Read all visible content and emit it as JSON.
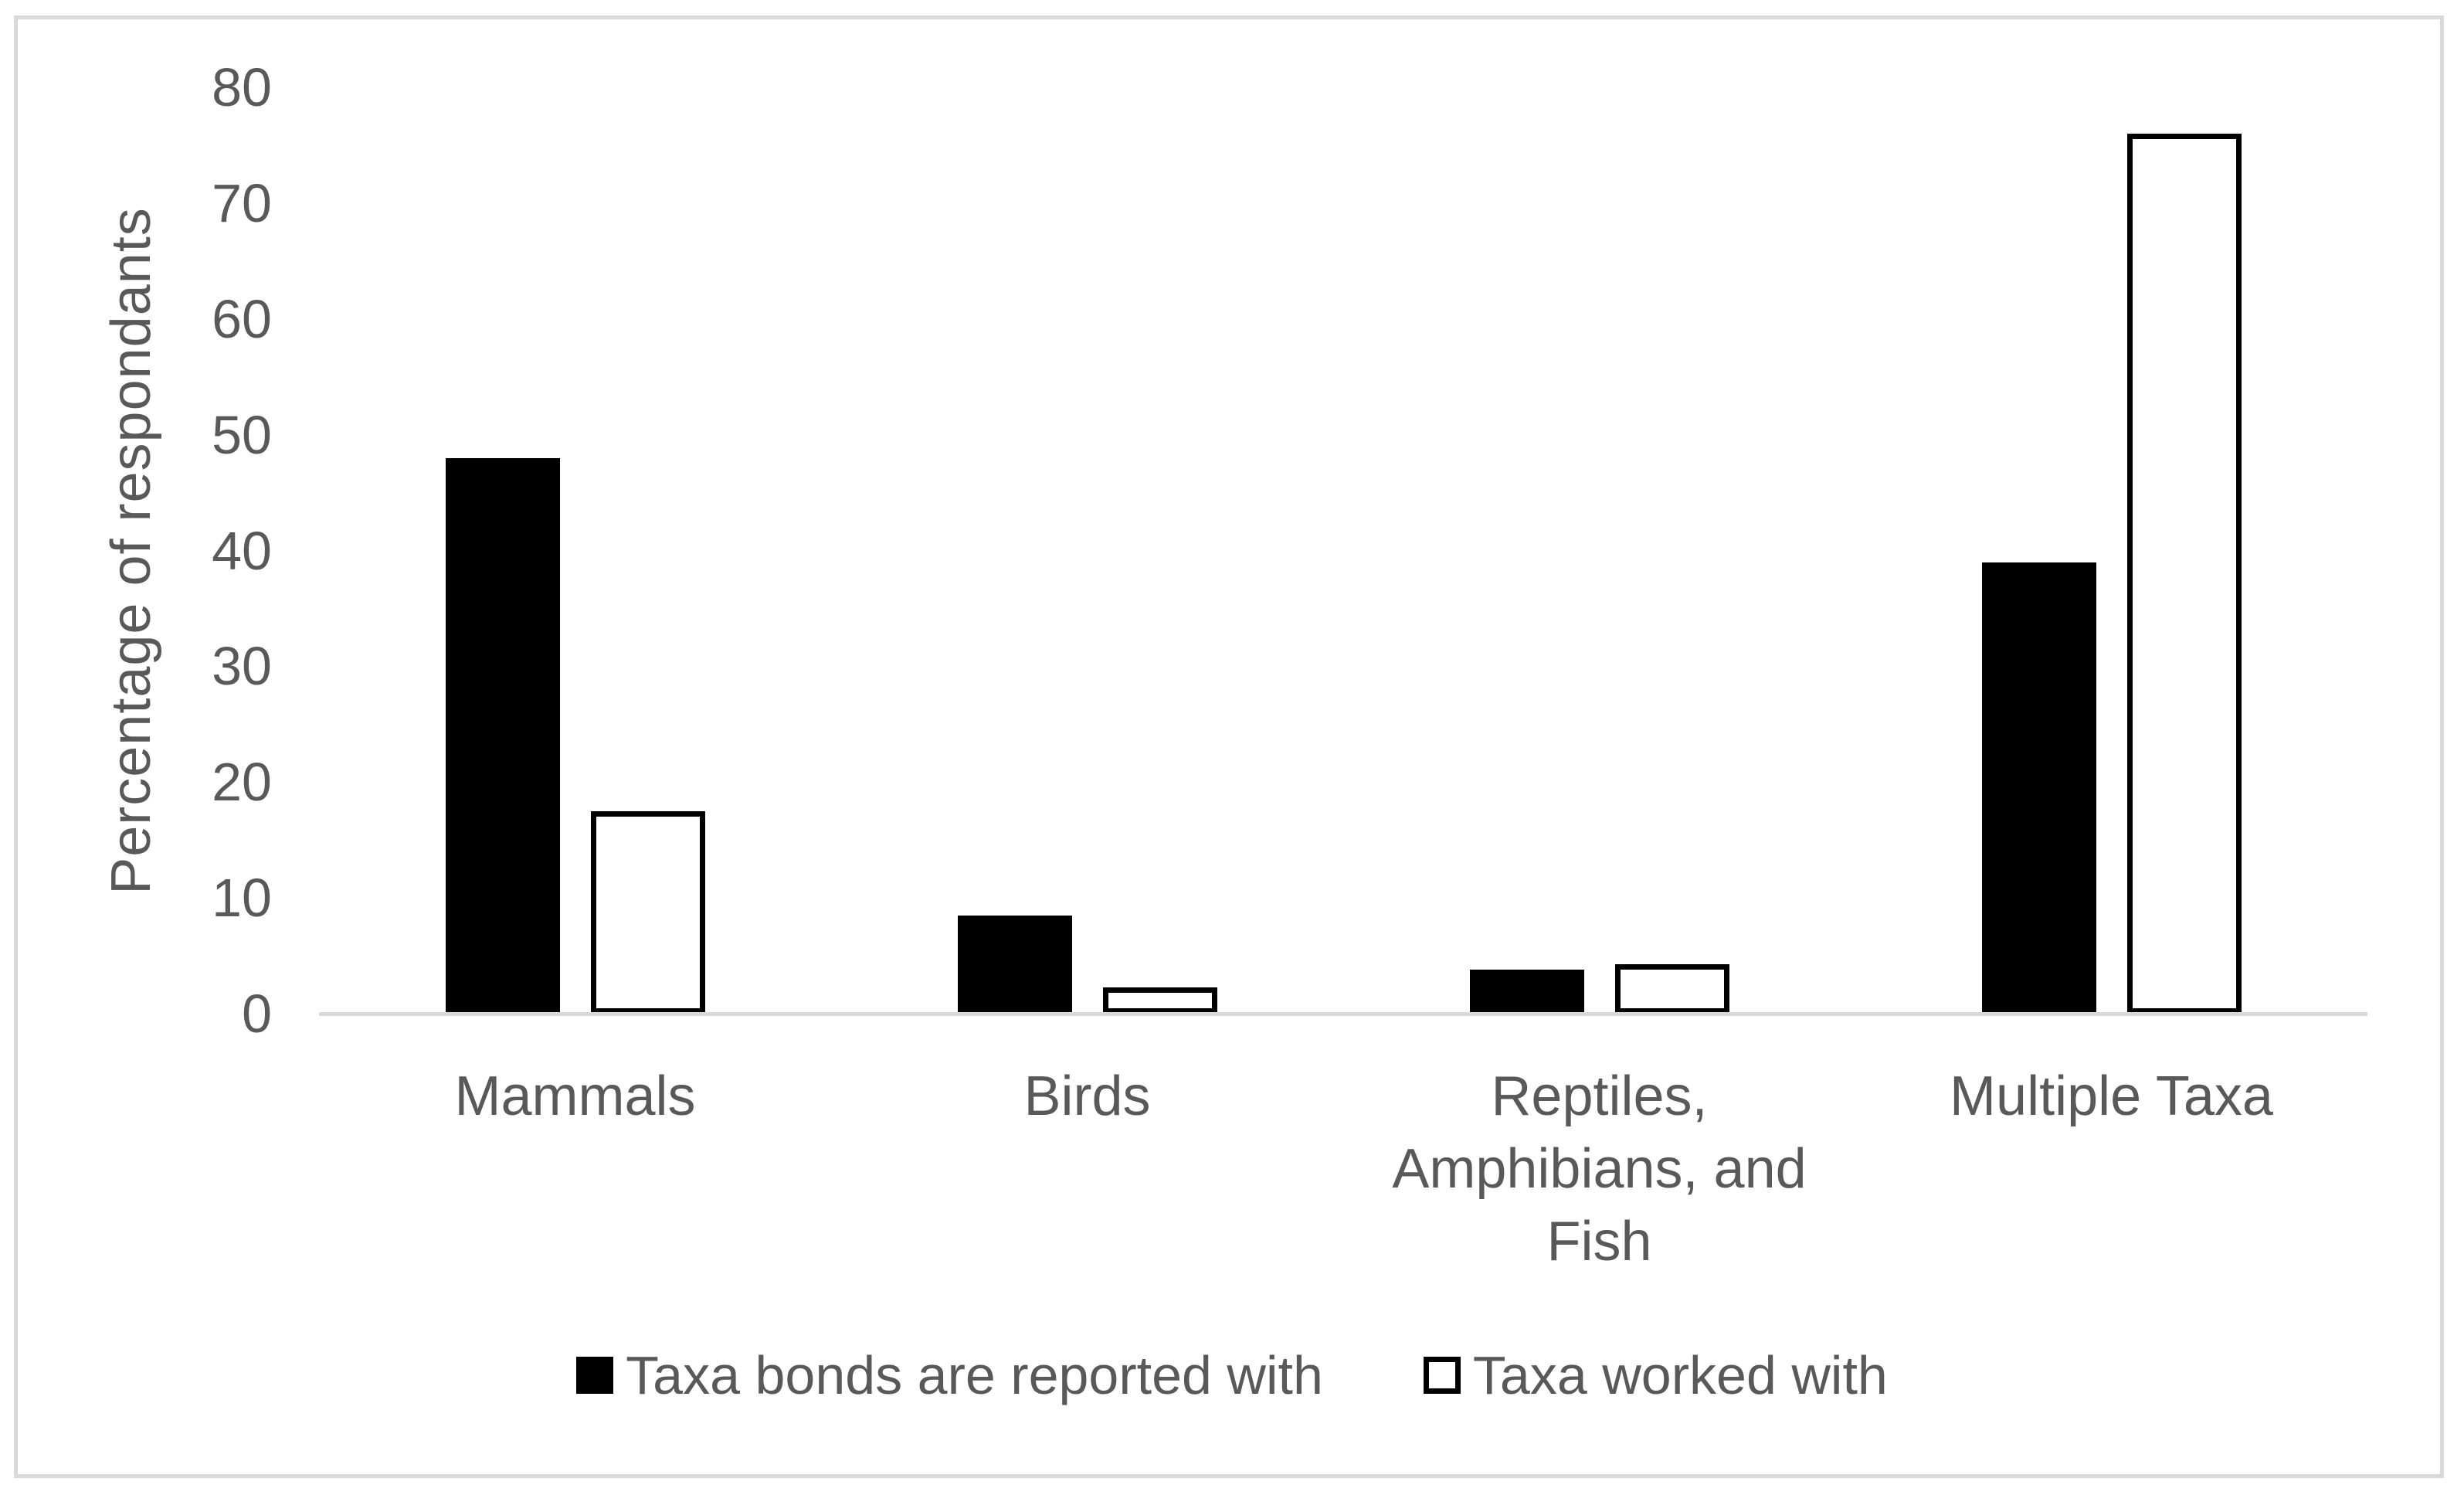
{
  "chart_data": {
    "type": "bar",
    "title": "",
    "xlabel": "",
    "ylabel": "Percentage of respondants",
    "ylim": [
      0,
      80
    ],
    "yticks": [
      0,
      10,
      20,
      30,
      40,
      50,
      60,
      70,
      80
    ],
    "grid": false,
    "legend_position": "bottom",
    "categories": [
      "Mammals",
      "Birds",
      "Reptiles,\nAmphibians, and\nFish",
      "Multiple Taxa"
    ],
    "series": [
      {
        "name": "Taxa bonds are reported with",
        "style": "filled",
        "color": "#000000",
        "values": [
          48,
          8.5,
          3.8,
          39
        ]
      },
      {
        "name": "Taxa worked with",
        "style": "outlined",
        "fill": "#ffffff",
        "border": "#000000",
        "border_width": 7,
        "values": [
          17.5,
          2.3,
          4.3,
          76
        ]
      }
    ]
  },
  "colors": {
    "background": "#ffffff",
    "text": "#595959",
    "axis_line": "#d9d9d9",
    "frame_border": "#d9d9d9"
  }
}
